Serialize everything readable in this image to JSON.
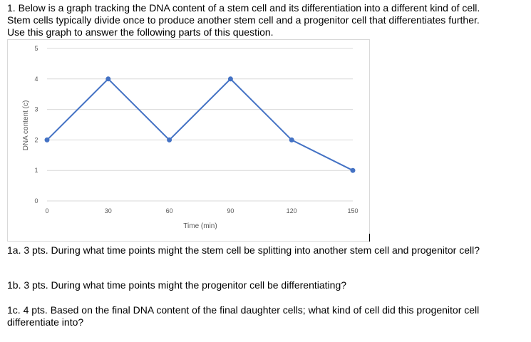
{
  "intro": {
    "lines": [
      "1. Below is a graph tracking the DNA content of a stem cell and its differentiation into a different kind of cell.",
      "Stem cells typically divide once to produce another stem cell and a progenitor cell that differentiates further.",
      "Use this graph to answer the following parts of this question."
    ]
  },
  "questions": {
    "q1a": "1a. 3 pts. During what time points might the stem cell be splitting into another stem cell and progenitor cell?",
    "q1b": "1b. 3 pts. During what time points might the progenitor cell be differentiating?",
    "q1c_line1": "1c. 4 pts. Based on the final DNA content of the final daughter cells; what kind of cell did this progenitor cell",
    "q1c_line2": "differentiate into?"
  },
  "chart_data": {
    "type": "line",
    "title": "",
    "xlabel": "Time (min)",
    "ylabel": "DNA content (c)",
    "x": [
      0,
      30,
      60,
      90,
      120,
      150
    ],
    "series": [
      {
        "values": [
          2,
          4,
          2,
          4,
          2,
          1
        ]
      }
    ],
    "xticks": [
      "0",
      "30",
      "60",
      "90",
      "120",
      "150"
    ],
    "yticks": [
      "0",
      "1",
      "2",
      "3",
      "4",
      "5"
    ],
    "xlim": [
      0,
      150
    ],
    "ylim": [
      0,
      5
    ],
    "grid": "horizontal",
    "legend": "none",
    "colors": {
      "line": "#4472c4",
      "grid": "#d9d9d9",
      "tick_text": "#595959"
    }
  }
}
